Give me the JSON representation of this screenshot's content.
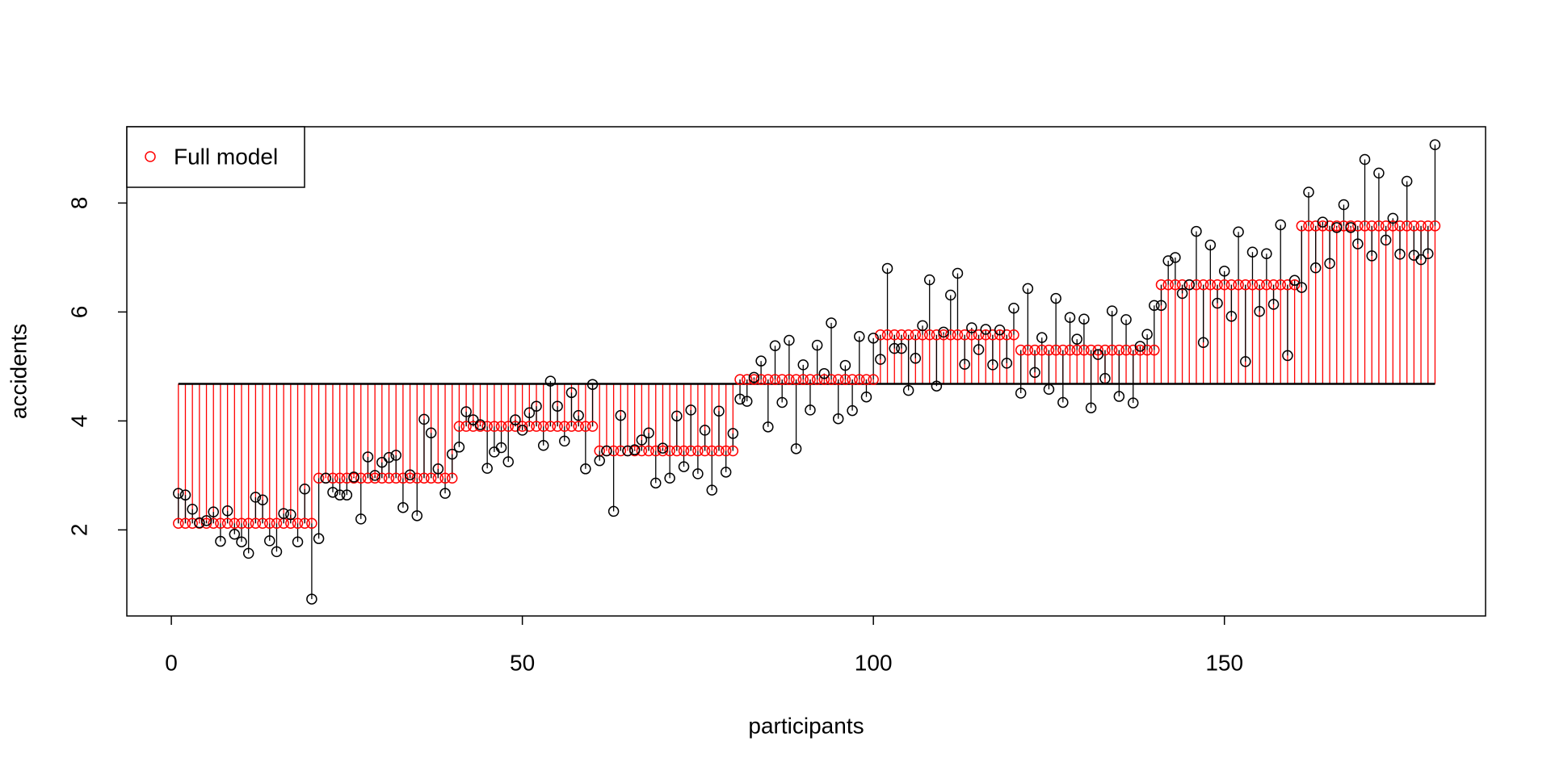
{
  "chart_data": {
    "type": "lollipop",
    "x_label": "participants",
    "y_label": "accidents",
    "x": [
      1,
      2,
      3,
      4,
      5,
      6,
      7,
      8,
      9,
      10,
      11,
      12,
      13,
      14,
      15,
      16,
      17,
      18,
      19,
      20,
      21,
      22,
      23,
      24,
      25,
      26,
      27,
      28,
      29,
      30,
      31,
      32,
      33,
      34,
      35,
      36,
      37,
      38,
      39,
      40,
      41,
      42,
      43,
      44,
      45,
      46,
      47,
      48,
      49,
      50,
      51,
      52,
      53,
      54,
      55,
      56,
      57,
      58,
      59,
      60,
      61,
      62,
      63,
      64,
      65,
      66,
      67,
      68,
      69,
      70,
      71,
      72,
      73,
      74,
      75,
      76,
      77,
      78,
      79,
      80,
      81,
      82,
      83,
      84,
      85,
      86,
      87,
      88,
      89,
      90,
      91,
      92,
      93,
      94,
      95,
      96,
      97,
      98,
      99,
      100,
      101,
      102,
      103,
      104,
      105,
      106,
      107,
      108,
      109,
      110,
      111,
      112,
      113,
      114,
      115,
      116,
      117,
      118,
      119,
      120,
      121,
      122,
      123,
      124,
      125,
      126,
      127,
      128,
      129,
      130,
      131,
      132,
      133,
      134,
      135,
      136,
      137,
      138,
      139,
      140,
      141,
      142,
      143,
      144,
      145,
      146,
      147,
      148,
      149,
      150,
      151,
      152,
      153,
      154,
      155,
      156,
      157,
      158,
      159,
      160,
      161,
      162,
      163,
      164,
      165,
      166,
      167,
      168,
      169,
      170,
      171,
      172,
      173,
      174,
      175,
      176,
      177,
      178,
      179,
      180
    ],
    "series": [
      {
        "color": "#000000",
        "values": [
          2.67,
          2.64,
          2.38,
          2.13,
          2.17,
          2.33,
          1.79,
          2.35,
          1.92,
          1.78,
          1.57,
          2.6,
          2.55,
          1.8,
          1.6,
          2.3,
          2.28,
          1.78,
          2.75,
          0.73,
          1.84,
          2.95,
          2.69,
          2.64,
          2.64,
          2.97,
          2.2,
          3.34,
          3.0,
          3.24,
          3.33,
          3.37,
          2.41,
          3.01,
          2.26,
          4.03,
          3.78,
          3.12,
          2.67,
          3.39,
          3.52,
          4.17,
          4.02,
          3.93,
          3.13,
          3.43,
          3.51,
          3.25,
          4.02,
          3.83,
          4.15,
          4.27,
          3.55,
          4.73,
          4.27,
          3.63,
          4.52,
          4.1,
          3.12,
          4.67,
          3.27,
          3.45,
          2.34,
          4.1,
          3.45,
          3.47,
          3.65,
          3.78,
          2.86,
          3.5,
          2.95,
          4.09,
          3.16,
          4.2,
          3.03,
          3.83,
          2.73,
          4.18,
          3.06,
          3.77,
          4.4,
          4.36,
          4.8,
          5.1,
          3.89,
          5.38,
          4.34,
          5.48,
          3.49,
          5.03,
          4.2,
          5.39,
          4.87,
          5.8,
          4.04,
          5.02,
          4.19,
          5.55,
          4.44,
          5.52,
          5.13,
          6.8,
          5.33,
          5.33,
          4.56,
          5.15,
          5.75,
          6.59,
          4.64,
          5.63,
          6.31,
          6.71,
          5.04,
          5.71,
          5.31,
          5.68,
          5.03,
          5.67,
          5.06,
          6.07,
          4.51,
          6.43,
          4.89,
          5.53,
          4.58,
          6.25,
          4.34,
          5.9,
          5.5,
          5.87,
          4.24,
          5.22,
          4.78,
          6.02,
          4.45,
          5.86,
          4.33,
          5.37,
          5.59,
          6.12,
          6.12,
          6.94,
          7.0,
          6.34,
          6.5,
          7.48,
          5.44,
          7.23,
          6.16,
          6.75,
          5.92,
          7.47,
          5.09,
          7.1,
          6.01,
          7.07,
          6.14,
          7.6,
          5.2,
          6.58,
          6.45,
          8.2,
          6.81,
          7.65,
          6.89,
          7.55,
          7.97,
          7.55,
          7.25,
          8.8,
          7.03,
          8.55,
          7.32,
          7.72,
          7.06,
          8.4,
          7.04,
          6.96,
          7.07,
          9.07
        ]
      },
      {
        "name": "Full model",
        "color": "#ff0000",
        "values": [
          2.12,
          2.12,
          2.12,
          2.12,
          2.12,
          2.12,
          2.12,
          2.12,
          2.12,
          2.12,
          2.12,
          2.12,
          2.12,
          2.12,
          2.12,
          2.12,
          2.12,
          2.12,
          2.12,
          2.12,
          2.95,
          2.95,
          2.95,
          2.95,
          2.95,
          2.95,
          2.95,
          2.95,
          2.95,
          2.95,
          2.95,
          2.95,
          2.95,
          2.95,
          2.95,
          2.95,
          2.95,
          2.95,
          2.95,
          2.95,
          3.9,
          3.9,
          3.9,
          3.9,
          3.9,
          3.9,
          3.9,
          3.9,
          3.9,
          3.9,
          3.9,
          3.9,
          3.9,
          3.9,
          3.9,
          3.9,
          3.9,
          3.9,
          3.9,
          3.9,
          3.45,
          3.45,
          3.45,
          3.45,
          3.45,
          3.45,
          3.45,
          3.45,
          3.45,
          3.45,
          3.45,
          3.45,
          3.45,
          3.45,
          3.45,
          3.45,
          3.45,
          3.45,
          3.45,
          3.45,
          4.76,
          4.76,
          4.76,
          4.76,
          4.76,
          4.76,
          4.76,
          4.76,
          4.76,
          4.76,
          4.76,
          4.76,
          4.76,
          4.76,
          4.76,
          4.76,
          4.76,
          4.76,
          4.76,
          4.76,
          5.58,
          5.58,
          5.58,
          5.58,
          5.58,
          5.58,
          5.58,
          5.58,
          5.58,
          5.58,
          5.58,
          5.58,
          5.58,
          5.58,
          5.58,
          5.58,
          5.58,
          5.58,
          5.58,
          5.58,
          5.3,
          5.3,
          5.3,
          5.3,
          5.3,
          5.3,
          5.3,
          5.3,
          5.3,
          5.3,
          5.3,
          5.3,
          5.3,
          5.3,
          5.3,
          5.3,
          5.3,
          5.3,
          5.3,
          5.3,
          6.5,
          6.5,
          6.5,
          6.5,
          6.5,
          6.5,
          6.5,
          6.5,
          6.5,
          6.5,
          6.5,
          6.5,
          6.5,
          6.5,
          6.5,
          6.5,
          6.5,
          6.5,
          6.5,
          6.5,
          7.58,
          7.58,
          7.58,
          7.58,
          7.58,
          7.58,
          7.58,
          7.58,
          7.58,
          7.58,
          7.58,
          7.58,
          7.58,
          7.58,
          7.58,
          7.58,
          7.58,
          7.58,
          7.58,
          7.58
        ]
      }
    ],
    "reference_line": 4.68,
    "xlim": [
      -6.34,
      187.2
    ],
    "ylim": [
      0.42,
      9.4
    ],
    "xticks": [
      0,
      50,
      100,
      150
    ],
    "yticks": [
      2,
      4,
      6,
      8
    ],
    "legend": "topleft"
  }
}
